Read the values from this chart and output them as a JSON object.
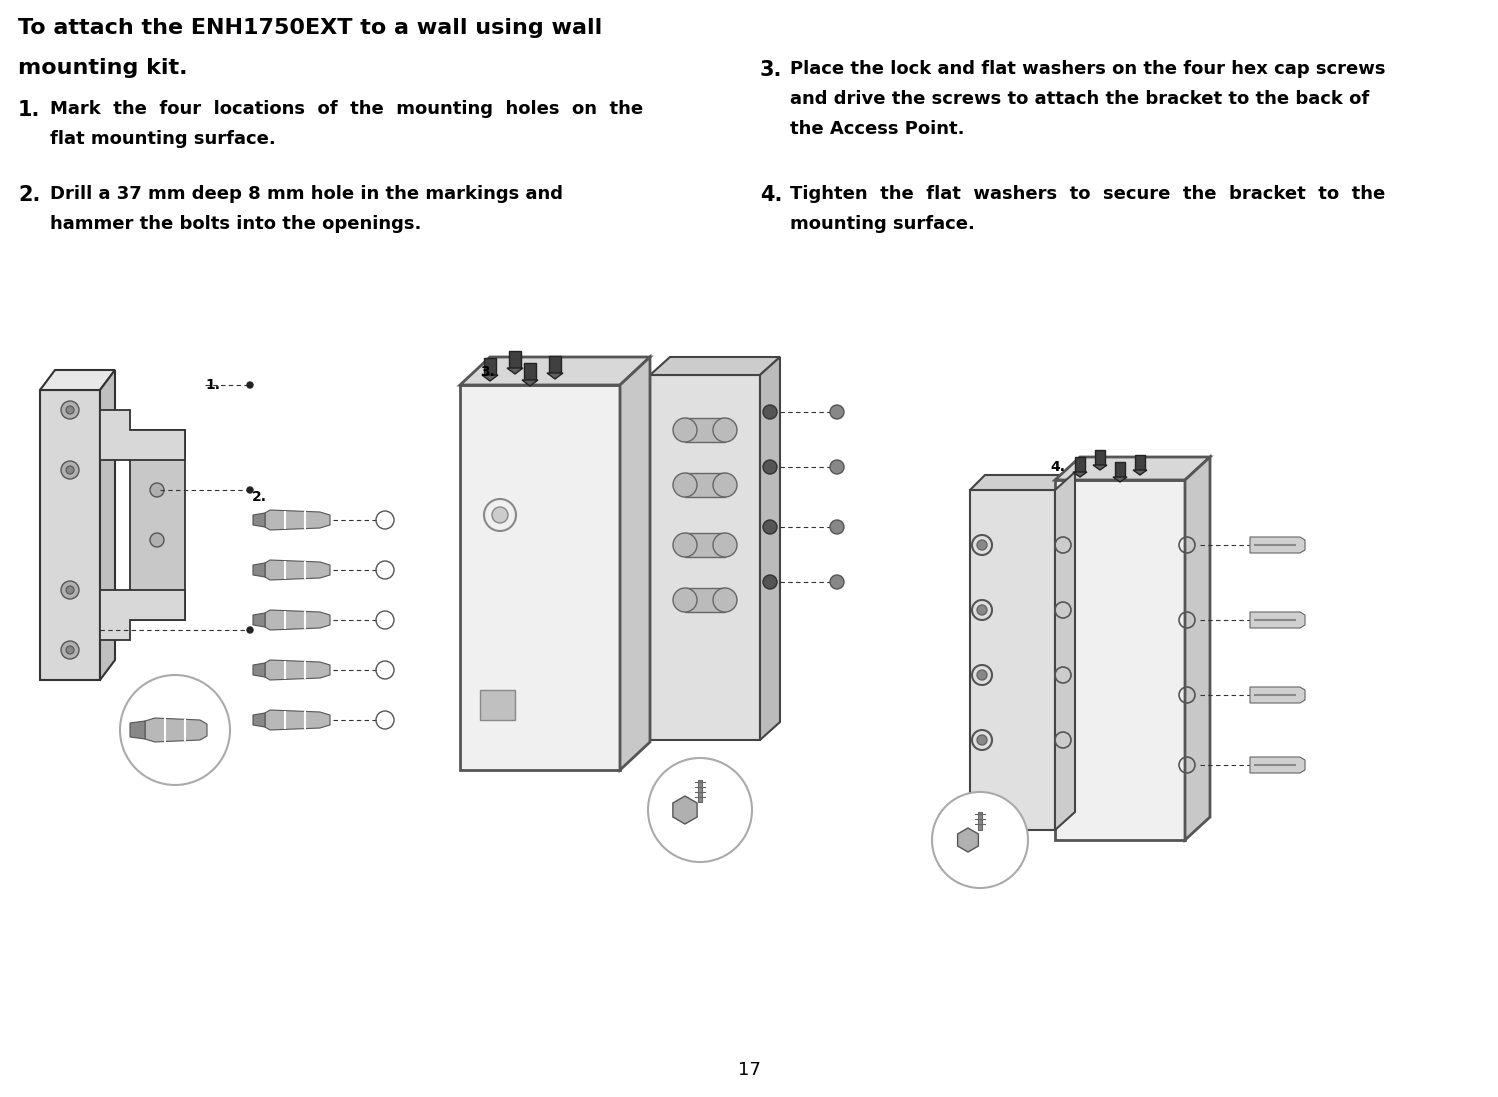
{
  "bg_color": "#ffffff",
  "page_number": "17",
  "title_line1": "To attach the ENH1750EXT to a wall using wall",
  "title_line2": "mounting kit.",
  "step1_num": "1.",
  "step1_line1": "Mark  the  four  locations  of  the  mounting  holes  on  the",
  "step1_line2": "flat mounting surface.",
  "step2_num": "2.",
  "step2_line1": "Drill a 37 mm deep 8 mm hole in the markings and",
  "step2_line2": "hammer the bolts into the openings.",
  "step3_num": "3.",
  "step3_line1": "Place the lock and flat washers on the four hex cap screws",
  "step3_line2": "and drive the screws to attach the bracket to the back of",
  "step3_line3": "the Access Point.",
  "step4_num": "4.",
  "step4_line1": "Tighten  the  flat  washers  to  secure  the  bracket  to  the",
  "step4_line2": "mounting surface.",
  "title_fontsize": 16,
  "step_num_fontsize": 15,
  "step_text_fontsize": 13,
  "font_family": "DejaVu Sans"
}
